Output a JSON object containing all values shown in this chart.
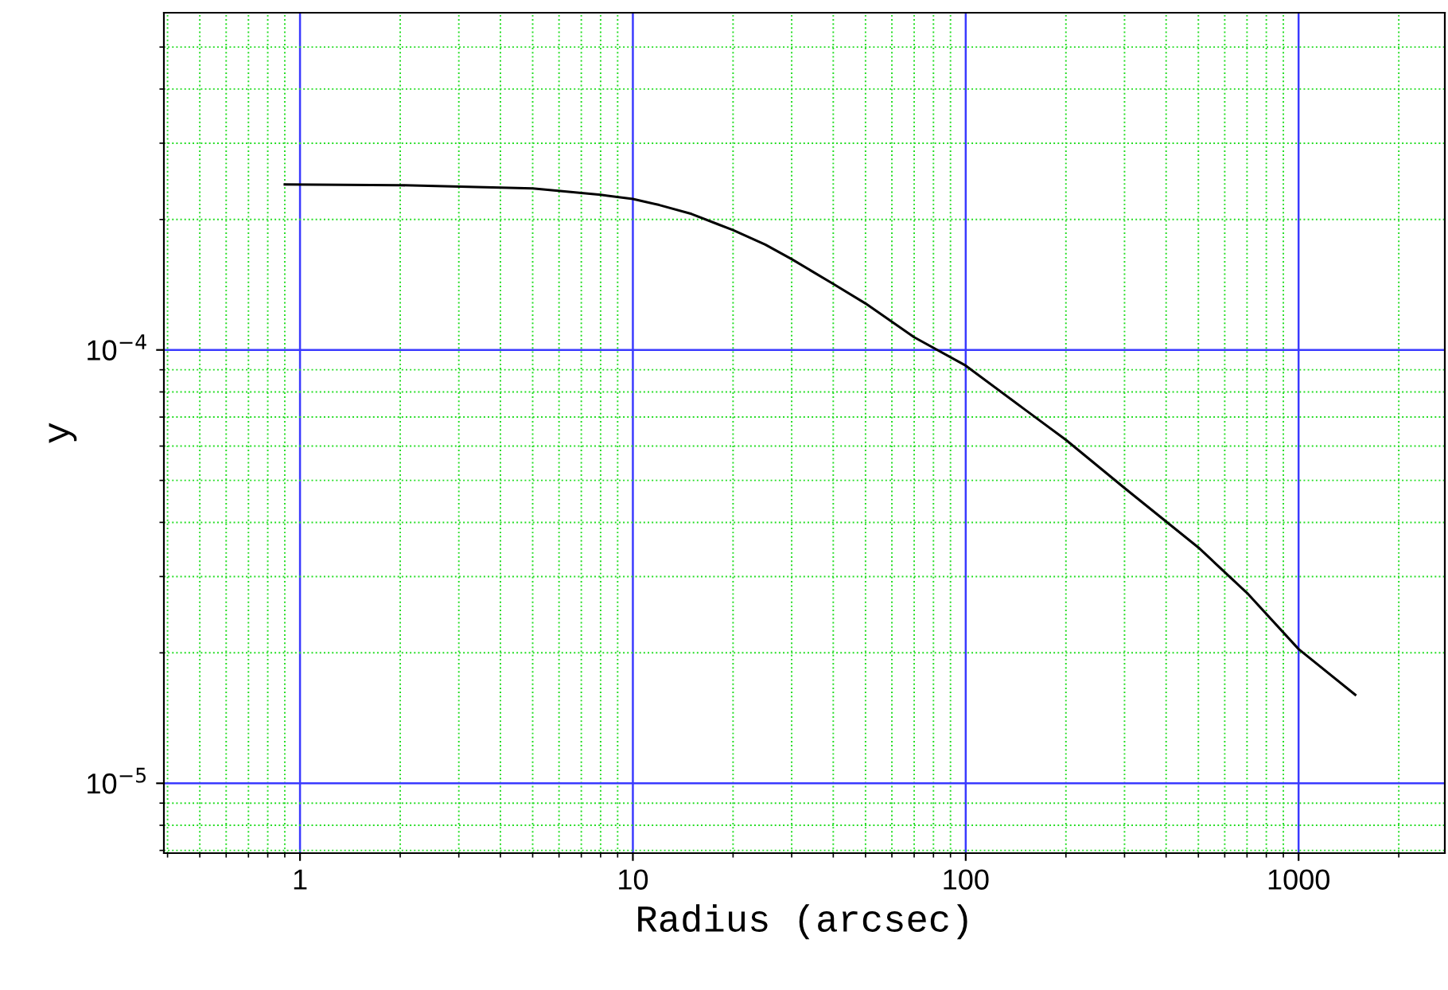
{
  "chart_data": {
    "type": "line",
    "xlabel": "Radius (arcsec)",
    "ylabel": "y",
    "log": "xy",
    "grid": true,
    "marker": "none",
    "line_style": "solid",
    "xlim": [
      0.39,
      2750
    ],
    "ylim": [
      6.9e-06,
      0.0006
    ],
    "xticks": [
      {
        "value": 0.4,
        "label": null
      },
      {
        "value": 0.5,
        "label": null
      },
      {
        "value": 0.6,
        "label": null
      },
      {
        "value": 0.7,
        "label": null
      },
      {
        "value": 0.8,
        "label": null
      },
      {
        "value": 0.9,
        "label": null
      },
      1,
      {
        "value": 2,
        "label": null
      },
      {
        "value": 3,
        "label": null
      },
      {
        "value": 4,
        "label": null
      },
      {
        "value": 5,
        "label": null
      },
      {
        "value": 6,
        "label": null
      },
      {
        "value": 7,
        "label": null
      },
      {
        "value": 8,
        "label": null
      },
      {
        "value": 9,
        "label": null
      },
      10,
      {
        "value": 20,
        "label": null
      },
      {
        "value": 30,
        "label": null
      },
      {
        "value": 40,
        "label": null
      },
      {
        "value": 50,
        "label": null
      },
      {
        "value": 60,
        "label": null
      },
      {
        "value": 70,
        "label": null
      },
      {
        "value": 80,
        "label": null
      },
      {
        "value": 90,
        "label": null
      },
      100,
      {
        "value": 200,
        "label": null
      },
      {
        "value": 300,
        "label": null
      },
      {
        "value": 400,
        "label": null
      },
      {
        "value": 500,
        "label": null
      },
      {
        "value": 600,
        "label": null
      },
      {
        "value": 700,
        "label": null
      },
      {
        "value": 800,
        "label": null
      },
      {
        "value": 900,
        "label": null
      },
      1000,
      {
        "value": 2000,
        "label": null
      }
    ],
    "yticks": [
      {
        "value": 7e-06,
        "label": null
      },
      {
        "value": 8e-06,
        "label": null
      },
      {
        "value": 9e-06,
        "label": null
      },
      {
        "value": 1e-05,
        "label": "10$^{−5}$"
      },
      {
        "value": 2e-05,
        "label": null
      },
      {
        "value": 3e-05,
        "label": null
      },
      {
        "value": 4e-05,
        "label": null
      },
      {
        "value": 5e-05,
        "label": null
      },
      {
        "value": 6e-05,
        "label": null
      },
      {
        "value": 7e-05,
        "label": null
      },
      {
        "value": 8e-05,
        "label": null
      },
      {
        "value": 9e-05,
        "label": null
      },
      {
        "value": 0.0001,
        "label": "10$^{−4}$"
      },
      {
        "value": 0.0002,
        "label": null
      },
      {
        "value": 0.0003,
        "label": null
      },
      {
        "value": 0.0004,
        "label": null
      },
      {
        "value": 0.0005,
        "label": null
      }
    ],
    "series": [
      {
        "color": "#000000",
        "x": [
          0.9,
          2,
          5,
          8,
          10,
          12,
          15,
          18,
          20,
          25,
          30,
          40,
          50,
          70,
          100,
          150,
          200,
          300,
          500,
          700,
          1000,
          1480
        ],
        "values": [
          0.000241,
          0.00024,
          0.000236,
          0.000228,
          0.000223,
          0.000216,
          0.000206,
          0.000195,
          0.000189,
          0.000175,
          0.000162,
          0.000142,
          0.000128,
          0.000107,
          9.2e-05,
          7.3e-05,
          6.2e-05,
          4.8e-05,
          3.5e-05,
          2.75e-05,
          2.04e-05,
          1.6e-05
        ]
      }
    ]
  }
}
